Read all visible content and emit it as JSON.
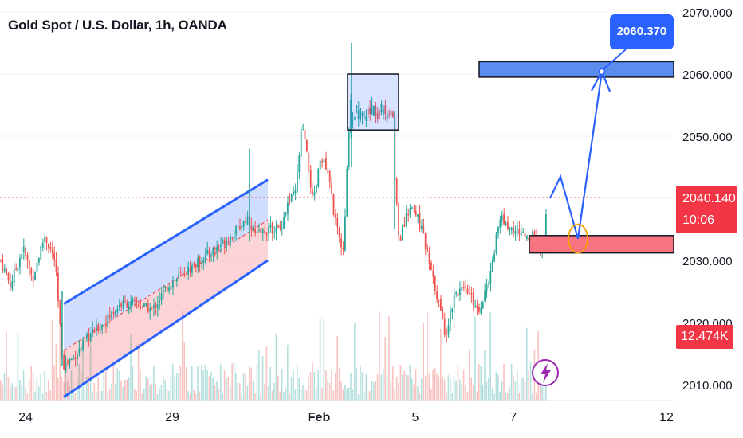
{
  "title": "Gold Spot / U.S. Dollar, 1h, OANDA",
  "price_tag": {
    "price": "2040.140",
    "countdown": "10:06"
  },
  "volume_tag": "12.474K",
  "target_callout": "2060.370",
  "colors": {
    "up": "#26a69a",
    "down": "#ef5350",
    "accent": "#2962ff",
    "last_price": "#f23645"
  },
  "icons": {
    "alert": "lightning-icon"
  },
  "chart_data": {
    "type": "candlestick",
    "symbol": "Gold Spot / U.S. Dollar",
    "interval": "1h",
    "broker": "OANDA",
    "ylim": [
      2009,
      2071
    ],
    "y_ticks": [
      "2070.000",
      "2060.000",
      "2050.000",
      "2040.000",
      "2030.000",
      "2020.000",
      "2010.000"
    ],
    "x_ticks": [
      {
        "label": "24",
        "bold": false
      },
      {
        "label": "29",
        "bold": false
      },
      {
        "label": "Feb",
        "bold": true
      },
      {
        "label": "5",
        "bold": false
      },
      {
        "label": "7",
        "bold": false
      },
      {
        "label": "12",
        "bold": false
      }
    ],
    "last_price": 2040.14,
    "last_volume": "12.474K",
    "anchors": [
      [
        0,
        2030
      ],
      [
        12,
        2026
      ],
      [
        28,
        2032
      ],
      [
        40,
        2027
      ],
      [
        55,
        2034
      ],
      [
        68,
        2030
      ],
      [
        78,
        2013
      ],
      [
        95,
        2015
      ],
      [
        112,
        2018
      ],
      [
        130,
        2020
      ],
      [
        150,
        2023
      ],
      [
        170,
        2023
      ],
      [
        190,
        2022
      ],
      [
        210,
        2026
      ],
      [
        230,
        2028
      ],
      [
        250,
        2030
      ],
      [
        270,
        2032
      ],
      [
        290,
        2034
      ],
      [
        310,
        2037
      ],
      [
        320,
        2034
      ],
      [
        335,
        2035
      ],
      [
        350,
        2035
      ],
      [
        360,
        2039
      ],
      [
        370,
        2041
      ],
      [
        378,
        2052
      ],
      [
        385,
        2046
      ],
      [
        392,
        2039
      ],
      [
        402,
        2047
      ],
      [
        412,
        2043
      ],
      [
        420,
        2036
      ],
      [
        430,
        2031
      ],
      [
        438,
        2055
      ],
      [
        445,
        2061
      ],
      [
        455,
        2054
      ],
      [
        470,
        2053
      ],
      [
        485,
        2054
      ],
      [
        495,
        2042
      ],
      [
        500,
        2033
      ],
      [
        510,
        2038
      ],
      [
        520,
        2038
      ],
      [
        530,
        2034
      ],
      [
        540,
        2028
      ],
      [
        548,
        2024
      ],
      [
        558,
        2018
      ],
      [
        570,
        2025
      ],
      [
        585,
        2025
      ],
      [
        600,
        2022
      ],
      [
        615,
        2028
      ],
      [
        625,
        2037
      ],
      [
        640,
        2035
      ],
      [
        660,
        2034
      ],
      [
        672,
        2034
      ],
      [
        680,
        2031
      ],
      [
        685,
        2040
      ]
    ],
    "channel": {
      "upper": [
        [
          80,
          2023
        ],
        [
          336,
          2043
        ]
      ],
      "lower": [
        [
          80,
          2008
        ],
        [
          336,
          2030
        ]
      ]
    },
    "consolidation_box": {
      "y_top": 2060,
      "y_bottom": 2051
    },
    "zones": {
      "target": {
        "y_top": 2062,
        "y_bottom": 2059.5
      },
      "support": {
        "y_top": 2034,
        "y_bottom": 2031.2
      }
    },
    "projection_path": [
      [
        690,
        2040
      ],
      [
        703,
        2043.5
      ],
      [
        725,
        2033.5
      ],
      [
        755,
        2060.4
      ]
    ],
    "projection_target": 2060.37,
    "grid": true,
    "grid_lines": [
      2030,
      2050,
      2060,
      2070
    ]
  }
}
